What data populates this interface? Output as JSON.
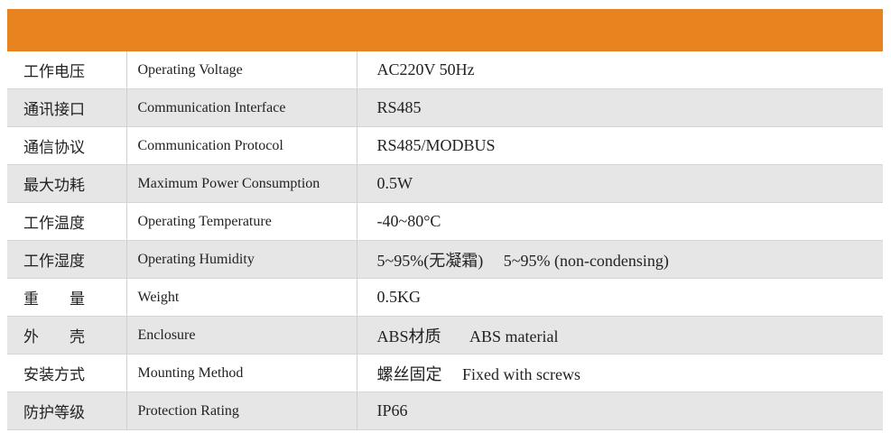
{
  "table": {
    "rows": [
      [
        "工作电压",
        "Operating Voltage",
        "AC220V 50Hz"
      ],
      [
        "通讯接口",
        "Communication Interface",
        "RS485"
      ],
      [
        "通信协议",
        "Communication Protocol",
        "RS485/MODBUS"
      ],
      [
        "最大功耗",
        "Maximum Power Consumption",
        "0.5W"
      ],
      [
        "工作温度",
        "Operating Temperature",
        "-40~80°C"
      ],
      [
        "工作湿度",
        "Operating Humidity",
        "5~95%(无凝霜)     5~95% (non-condensing)"
      ],
      [
        "重　　量",
        "Weight",
        "0.5KG"
      ],
      [
        "外　　壳",
        "Enclosure",
        "ABS材质       ABS material"
      ],
      [
        "安装方式",
        "Mounting Method",
        "螺丝固定     Fixed with screws"
      ],
      [
        "防护等级",
        "Protection Rating",
        "IP66"
      ]
    ]
  }
}
